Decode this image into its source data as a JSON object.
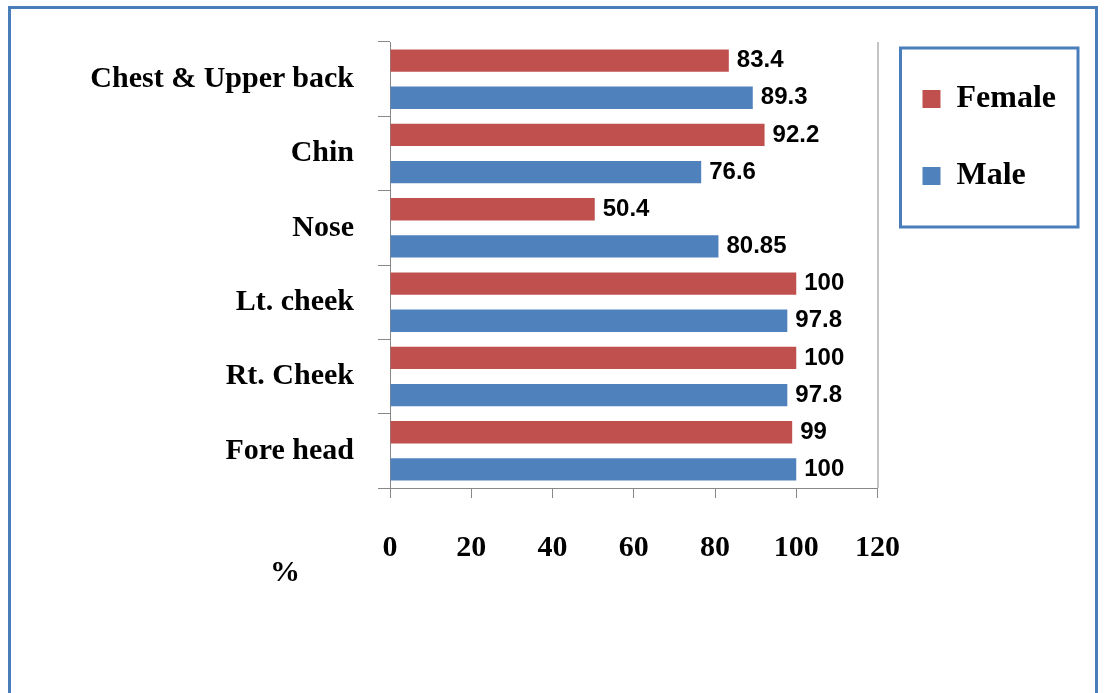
{
  "chart_data": {
    "type": "bar",
    "orientation": "horizontal",
    "categories": [
      "Chest & Upper back",
      "Chin",
      "Nose",
      "Lt. cheek",
      "Rt. Cheek",
      "Fore head"
    ],
    "series": [
      {
        "name": "Female",
        "color": "#c0504d",
        "values": [
          83.4,
          92.2,
          50.4,
          100,
          100,
          99
        ]
      },
      {
        "name": "Male",
        "color": "#4f81bd",
        "values": [
          89.3,
          76.6,
          80.85,
          97.8,
          97.8,
          100
        ]
      }
    ],
    "xlabel": "%",
    "xlim": [
      0,
      120
    ],
    "xticks": [
      0,
      20,
      40,
      60,
      80,
      100,
      120
    ],
    "data_labels": true,
    "legend": "right",
    "grid": false
  }
}
